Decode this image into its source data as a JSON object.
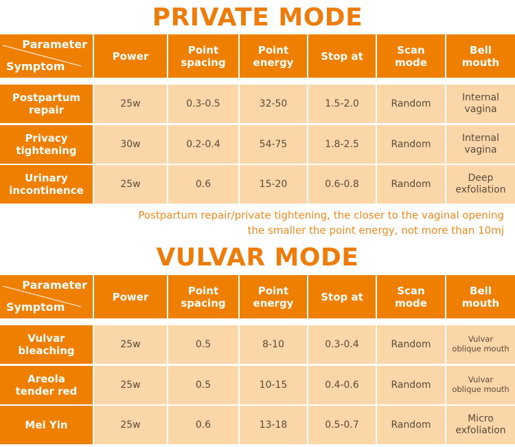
{
  "private_mode": {
    "title": "PRIVATE MODE",
    "header": {
      "corner_parameter": "Parameter",
      "corner_symptom": "Symptom",
      "columns": [
        "Power",
        "Point\nspacing",
        "Point\nenergy",
        "Stop at",
        "Scan\nmode",
        "Bell\nmouth"
      ]
    },
    "rows": [
      {
        "symptom": "Postpartum\nrepair",
        "power": "25w",
        "spacing": "0.3-0.5",
        "energy": "32-50",
        "stop_at": "1.5-2.0",
        "scan": "Random",
        "bell": "Internal\nvagina"
      },
      {
        "symptom": "Privacy\ntightening",
        "power": "30w",
        "spacing": "0.2-0.4",
        "energy": "54-75",
        "stop_at": "1.8-2.5",
        "scan": "Random",
        "bell": "Internal\nvagina"
      },
      {
        "symptom": "Urinary\nincontinence",
        "power": "25w",
        "spacing": "0.6",
        "energy": "15-20",
        "stop_at": "0.6-0.8",
        "scan": "Random",
        "bell": "Deep\nexfoliation"
      }
    ],
    "note_line1": "Postpartum repair/private tightening, the closer to the vaginal opening",
    "note_line2": "the smaller the point energy, not more than 10mj"
  },
  "vulvar_mode": {
    "title": "VULVAR MODE",
    "header": {
      "corner_parameter": "Parameter",
      "corner_symptom": "Symptom",
      "columns": [
        "Power",
        "Point\nspacing",
        "Point\nenergy",
        "Stop at",
        "Scan\nmode",
        "Bell\nmouth"
      ]
    },
    "rows": [
      {
        "symptom": "Vulvar\nbleaching",
        "power": "25w",
        "spacing": "0.5",
        "energy": "8-10",
        "stop_at": "0.3-0.4",
        "scan": "Random",
        "bell": "Vulvar\noblique mouth"
      },
      {
        "symptom": "Areola\ntender red",
        "power": "25w",
        "spacing": "0.5",
        "energy": "10-15",
        "stop_at": "0.4-0.6",
        "scan": "Random",
        "bell": "Vulvar\noblique mouth"
      },
      {
        "symptom": "Mei Yin",
        "power": "25w",
        "spacing": "0.6",
        "energy": "13-18",
        "stop_at": "0.5-0.7",
        "scan": "Random",
        "bell": "Micro\nexfoliation"
      }
    ]
  },
  "colors": {
    "accent": "#ee7f00",
    "cell_bg": "#fbd6a8",
    "note": "#ef8a1e"
  }
}
